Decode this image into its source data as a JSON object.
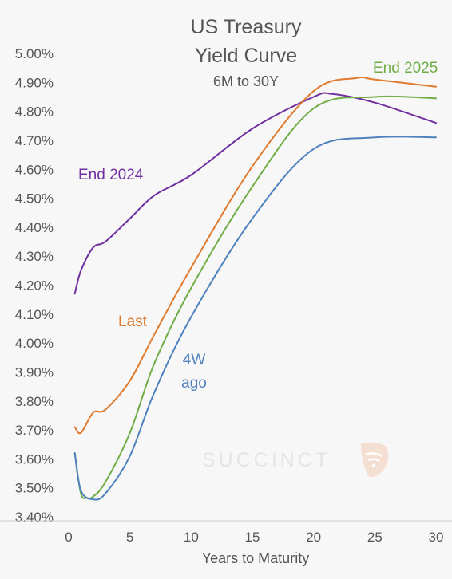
{
  "chart_data": {
    "type": "line",
    "title_lines": [
      "US Treasury",
      "Yield Curve"
    ],
    "subtitle": "6M to 30Y",
    "xlabel": "Years to Maturity",
    "ylabel": "",
    "xlim": [
      0,
      30
    ],
    "ylim": [
      3.4,
      5.0
    ],
    "x_ticks": [
      0,
      5,
      10,
      15,
      20,
      25,
      30
    ],
    "y_ticks": [
      3.4,
      3.5,
      3.6,
      3.7,
      3.8,
      3.9,
      4.0,
      4.1,
      4.2,
      4.3,
      4.4,
      4.5,
      4.6,
      4.7,
      4.8,
      4.9,
      5.0
    ],
    "y_tick_labels": [
      "3.40%",
      "3.50%",
      "3.60%",
      "3.70%",
      "3.80%",
      "3.90%",
      "4.00%",
      "4.10%",
      "4.20%",
      "4.30%",
      "4.40%",
      "4.50%",
      "4.60%",
      "4.70%",
      "4.80%",
      "4.90%",
      "5.00%"
    ],
    "grid": false,
    "series": [
      {
        "name": "End 2024",
        "color": "#7030a0",
        "x": [
          0.5,
          1,
          2,
          3,
          5,
          7,
          10,
          15,
          20,
          21.5,
          25,
          30
        ],
        "y": [
          4.17,
          4.25,
          4.33,
          4.35,
          4.43,
          4.51,
          4.58,
          4.74,
          4.85,
          4.86,
          4.83,
          4.76
        ]
      },
      {
        "name": "Last",
        "color": "#e07a2e",
        "x": [
          0.5,
          1,
          2,
          3,
          5,
          7,
          10,
          15,
          20,
          23.5,
          25,
          30
        ],
        "y": [
          3.71,
          3.69,
          3.76,
          3.77,
          3.87,
          4.03,
          4.26,
          4.61,
          4.87,
          4.915,
          4.91,
          4.885
        ]
      },
      {
        "name": "End 2025",
        "color": "#70ad47",
        "x": [
          0.5,
          1,
          1.5,
          2,
          3,
          5,
          7,
          10,
          15,
          20,
          25,
          30
        ],
        "y": [
          3.62,
          3.48,
          3.465,
          3.47,
          3.52,
          3.69,
          3.93,
          4.19,
          4.54,
          4.81,
          4.85,
          4.845
        ]
      },
      {
        "name": "4W ago",
        "color": "#4f81bd",
        "x": [
          0.5,
          1,
          2,
          3,
          5,
          7,
          10,
          15,
          20,
          25,
          30
        ],
        "y": [
          3.62,
          3.49,
          3.46,
          3.48,
          3.61,
          3.83,
          4.09,
          4.43,
          4.67,
          4.71,
          4.71
        ]
      }
    ],
    "annotations": [
      {
        "series": "End 2024",
        "lines": [
          "End 2024"
        ]
      },
      {
        "series": "Last",
        "lines": [
          "Last"
        ]
      },
      {
        "series": "End 2025",
        "lines": [
          "End 2025"
        ]
      },
      {
        "series": "4W ago",
        "lines": [
          "4W",
          "ago"
        ]
      }
    ],
    "watermark": "SUCCINCT"
  }
}
